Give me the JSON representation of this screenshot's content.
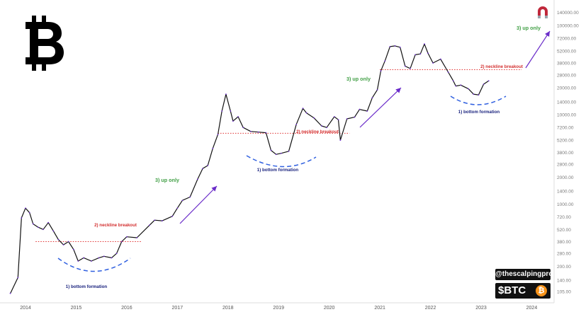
{
  "badges": {
    "handle": "@thescalpingpro",
    "ticker": "$BTC",
    "coin_symbol": "₿"
  },
  "logo": {
    "icon": "bitcoin-logo",
    "color": "#000000"
  },
  "magnet_icon": {
    "icon": "magnet-icon",
    "colors": [
      "#c0283b",
      "#9aa4ad"
    ]
  },
  "chart_data": {
    "type": "line",
    "title": "",
    "xlabel": "",
    "ylabel": "",
    "y_scale": "log",
    "ylim": [
      90,
      160000
    ],
    "x_ticks": [
      "2014",
      "2015",
      "2016",
      "2017",
      "2018",
      "2019",
      "2020",
      "2021",
      "2022",
      "2023",
      "2024"
    ],
    "y_ticks": [
      {
        "value": 105,
        "label": "105.00"
      },
      {
        "value": 140,
        "label": "140.00"
      },
      {
        "value": 200,
        "label": "200.00"
      },
      {
        "value": 280,
        "label": "280.00"
      },
      {
        "value": 380,
        "label": "380.00"
      },
      {
        "value": 520,
        "label": "520.00"
      },
      {
        "value": 720,
        "label": "720.00"
      },
      {
        "value": 1000,
        "label": "1000.00"
      },
      {
        "value": 1400,
        "label": "1400.00"
      },
      {
        "value": 2000,
        "label": "2000.00"
      },
      {
        "value": 2800,
        "label": "2800.00"
      },
      {
        "value": 3800,
        "label": "3800.00"
      },
      {
        "value": 5200,
        "label": "5200.00"
      },
      {
        "value": 7200,
        "label": "7200.00"
      },
      {
        "value": 10000,
        "label": "10000.00"
      },
      {
        "value": 14000,
        "label": "14000.00"
      },
      {
        "value": 20000,
        "label": "20000.00"
      },
      {
        "value": 28000,
        "label": "28000.00"
      },
      {
        "value": 38000,
        "label": "38000.00"
      },
      {
        "value": 52000,
        "label": "52000.00"
      },
      {
        "value": 72000,
        "label": "72000.00"
      },
      {
        "value": 100000,
        "label": "100000.00"
      },
      {
        "value": 140000,
        "label": "140000.00"
      }
    ],
    "series": [
      {
        "color": "#111111",
        "x": [
          2013.7,
          2013.85,
          2013.92,
          2014.0,
          2014.08,
          2014.15,
          2014.25,
          2014.35,
          2014.45,
          2014.55,
          2014.65,
          2014.75,
          2014.85,
          2014.95,
          2015.04,
          2015.15,
          2015.3,
          2015.45,
          2015.55,
          2015.7,
          2015.8,
          2015.9,
          2016.0,
          2016.2,
          2016.45,
          2016.55,
          2016.7,
          2016.9,
          2017.0,
          2017.1,
          2017.25,
          2017.4,
          2017.5,
          2017.6,
          2017.7,
          2017.8,
          2017.88,
          2017.96,
          2018.05,
          2018.1,
          2018.2,
          2018.3,
          2018.45,
          2018.6,
          2018.75,
          2018.85,
          2018.95,
          2019.05,
          2019.2,
          2019.35,
          2019.48,
          2019.55,
          2019.7,
          2019.85,
          2019.95,
          2020.1,
          2020.18,
          2020.22,
          2020.35,
          2020.5,
          2020.6,
          2020.75,
          2020.85,
          2020.95,
          2021.02,
          2021.1,
          2021.2,
          2021.3,
          2021.4,
          2021.5,
          2021.6,
          2021.7,
          2021.8,
          2021.88,
          2021.95,
          2022.05,
          2022.2,
          2022.35,
          2022.45,
          2022.5,
          2022.6,
          2022.75,
          2022.85,
          2022.95,
          2023.05,
          2023.15
        ],
        "y": [
          100,
          150,
          700,
          900,
          800,
          600,
          550,
          520,
          620,
          500,
          400,
          350,
          380,
          310,
          230,
          250,
          230,
          250,
          260,
          250,
          280,
          380,
          430,
          420,
          580,
          660,
          650,
          730,
          900,
          1100,
          1200,
          1900,
          2500,
          2700,
          4200,
          6000,
          11000,
          17000,
          11000,
          8500,
          9500,
          7200,
          6500,
          6400,
          6300,
          4000,
          3600,
          3700,
          3900,
          7800,
          11800,
          10500,
          9200,
          7500,
          7200,
          9500,
          8800,
          5200,
          9000,
          9400,
          11500,
          11000,
          15500,
          19000,
          31000,
          40000,
          58000,
          59000,
          57000,
          35000,
          33000,
          47000,
          48000,
          62000,
          49000,
          38000,
          42000,
          30000,
          24000,
          21000,
          21500,
          19500,
          17000,
          16700,
          22000,
          24000
        ]
      }
    ],
    "neckline_color": "#e03030",
    "bottom_curve_color": "#3060e0",
    "up_arrow_color": "#6a2cc9",
    "annotations": [
      {
        "text": "1) bottom formation",
        "color": "#1a237e"
      },
      {
        "text": "2) neckline breakout",
        "color": "#d32f2f"
      },
      {
        "text": "3) up only",
        "color": "#43a047"
      },
      {
        "text": "1) bottom formation",
        "color": "#1a237e"
      },
      {
        "text": "2) neckline breakout",
        "color": "#d32f2f"
      },
      {
        "text": "3) up only",
        "color": "#43a047"
      },
      {
        "text": "2) neckline breakout",
        "color": "#d32f2f"
      },
      {
        "text": "3) up only",
        "color": "#43a047"
      },
      {
        "text": "1) bottom formation",
        "color": "#1a237e"
      }
    ]
  }
}
